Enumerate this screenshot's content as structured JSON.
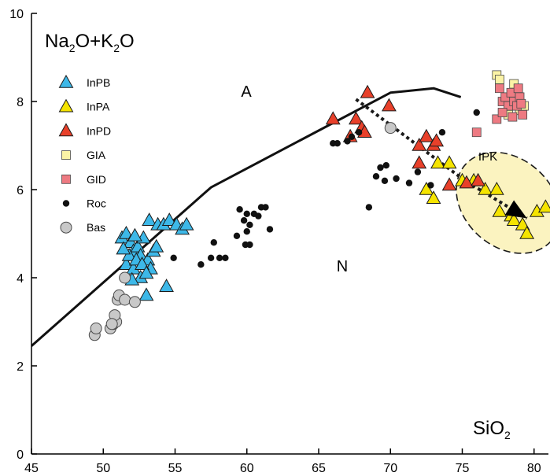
{
  "chart_data": {
    "type": "scatter",
    "title": "",
    "xlabel": {
      "main": "SiO",
      "sub": "2"
    },
    "ylabel": {
      "parts": [
        {
          "t": "Na",
          "sub": false
        },
        {
          "t": "2",
          "sub": true
        },
        {
          "t": "O+K",
          "sub": false
        },
        {
          "t": "2",
          "sub": true
        },
        {
          "t": "O",
          "sub": false
        }
      ]
    },
    "xlim": [
      45,
      81
    ],
    "ylim": [
      0,
      10
    ],
    "xticks": [
      45,
      50,
      55,
      60,
      65,
      70,
      75,
      80
    ],
    "yticks": [
      0,
      2,
      4,
      6,
      8,
      10
    ],
    "grid": false,
    "legend_position": "top-left",
    "colors": {
      "InPB": "#3db8e8",
      "InPA": "#f5e400",
      "InPD": "#e8402a",
      "GIA": "#fbf3a6",
      "GID": "#ee7a82",
      "Roc": "#111111",
      "Bas": "#c8c8c8",
      "ipk_fill": "#fbf3c0",
      "line": "#111111"
    },
    "series": [
      {
        "name": "InPB",
        "marker": "triangle",
        "points": [
          [
            51.3,
            4.9
          ],
          [
            51.6,
            5.0
          ],
          [
            51.9,
            4.8
          ],
          [
            52.1,
            4.6
          ],
          [
            52.4,
            4.7
          ],
          [
            52.6,
            4.5
          ],
          [
            52.8,
            4.9
          ],
          [
            53.1,
            4.4
          ],
          [
            51.6,
            4.3
          ],
          [
            52.1,
            4.2
          ],
          [
            52.6,
            4.0
          ],
          [
            53.3,
            4.2
          ],
          [
            53.5,
            4.6
          ],
          [
            51.8,
            4.5
          ],
          [
            52.3,
            4.4
          ],
          [
            52.7,
            4.3
          ],
          [
            53.0,
            4.1
          ],
          [
            53.2,
            5.3
          ],
          [
            53.8,
            5.2
          ],
          [
            54.2,
            5.2
          ],
          [
            54.6,
            5.3
          ],
          [
            55.1,
            5.2
          ],
          [
            55.5,
            5.1
          ],
          [
            55.8,
            5.2
          ],
          [
            53.7,
            4.7
          ],
          [
            52.0,
            3.95
          ],
          [
            53.0,
            3.6
          ],
          [
            54.4,
            3.8
          ],
          [
            51.4,
            4.65
          ],
          [
            52.2,
            4.95
          ]
        ]
      },
      {
        "name": "InPA",
        "marker": "triangle",
        "points": [
          [
            72.5,
            6.0
          ],
          [
            73.0,
            5.8
          ],
          [
            73.3,
            6.6
          ],
          [
            74.1,
            6.6
          ],
          [
            75.0,
            6.2
          ],
          [
            75.8,
            6.2
          ],
          [
            76.6,
            6.0
          ],
          [
            77.4,
            6.0
          ],
          [
            77.6,
            5.5
          ],
          [
            78.4,
            5.4
          ],
          [
            78.6,
            5.3
          ],
          [
            79.2,
            5.2
          ],
          [
            79.5,
            5.0
          ],
          [
            80.2,
            5.5
          ],
          [
            80.8,
            5.6
          ]
        ]
      },
      {
        "name": "InPD",
        "marker": "triangle",
        "points": [
          [
            66.0,
            7.6
          ],
          [
            67.2,
            7.2
          ],
          [
            67.6,
            7.6
          ],
          [
            68.0,
            7.4
          ],
          [
            68.2,
            7.3
          ],
          [
            68.4,
            8.2
          ],
          [
            69.9,
            7.9
          ],
          [
            72.0,
            7.0
          ],
          [
            72.5,
            7.2
          ],
          [
            73.0,
            7.0
          ],
          [
            73.2,
            7.1
          ],
          [
            74.1,
            6.1
          ],
          [
            75.3,
            6.15
          ],
          [
            72.0,
            6.6
          ],
          [
            76.1,
            6.2
          ]
        ]
      },
      {
        "name": "GIA",
        "marker": "square",
        "points": [
          [
            77.4,
            8.6
          ],
          [
            77.6,
            8.5
          ],
          [
            78.6,
            8.4
          ],
          [
            78.2,
            7.7
          ],
          [
            79.0,
            7.8
          ],
          [
            79.3,
            7.9
          ]
        ]
      },
      {
        "name": "GID",
        "marker": "square",
        "points": [
          [
            77.6,
            8.3
          ],
          [
            77.8,
            8.0
          ],
          [
            78.0,
            8.1
          ],
          [
            78.2,
            7.9
          ],
          [
            78.4,
            8.2
          ],
          [
            78.6,
            8.0
          ],
          [
            78.8,
            7.9
          ],
          [
            78.9,
            8.3
          ],
          [
            79.0,
            8.1
          ],
          [
            79.2,
            7.7
          ],
          [
            77.4,
            7.6
          ],
          [
            77.8,
            7.75
          ],
          [
            78.5,
            7.65
          ],
          [
            79.1,
            7.95
          ],
          [
            76.0,
            7.3
          ]
        ]
      },
      {
        "name": "Roc",
        "marker": "dot",
        "points": [
          [
            54.9,
            4.45
          ],
          [
            56.8,
            4.3
          ],
          [
            57.5,
            4.45
          ],
          [
            57.7,
            4.8
          ],
          [
            58.1,
            4.45
          ],
          [
            58.5,
            4.45
          ],
          [
            59.3,
            4.95
          ],
          [
            59.5,
            5.55
          ],
          [
            59.8,
            5.3
          ],
          [
            60.0,
            5.45
          ],
          [
            60.2,
            5.2
          ],
          [
            60.0,
            5.05
          ],
          [
            60.5,
            5.45
          ],
          [
            60.8,
            5.4
          ],
          [
            61.0,
            5.6
          ],
          [
            61.3,
            5.6
          ],
          [
            61.6,
            5.1
          ],
          [
            59.9,
            4.75
          ],
          [
            60.2,
            4.75
          ],
          [
            66.0,
            7.05
          ],
          [
            66.3,
            7.05
          ],
          [
            67.0,
            7.1
          ],
          [
            67.3,
            7.2
          ],
          [
            67.8,
            7.3
          ],
          [
            69.0,
            6.3
          ],
          [
            69.3,
            6.5
          ],
          [
            69.7,
            6.55
          ],
          [
            70.4,
            6.25
          ],
          [
            71.3,
            6.15
          ],
          [
            71.9,
            6.4
          ],
          [
            72.8,
            6.1
          ],
          [
            73.6,
            7.3
          ],
          [
            76.0,
            7.75
          ],
          [
            68.5,
            5.6
          ],
          [
            69.6,
            6.2
          ]
        ]
      },
      {
        "name": "Bas",
        "marker": "circle",
        "points": [
          [
            49.4,
            2.7
          ],
          [
            49.5,
            2.85
          ],
          [
            50.5,
            2.85
          ],
          [
            50.7,
            2.95
          ],
          [
            50.9,
            3.0
          ],
          [
            50.8,
            3.15
          ],
          [
            51.0,
            3.5
          ],
          [
            51.1,
            3.6
          ],
          [
            51.5,
            3.5
          ],
          [
            51.5,
            4.0
          ],
          [
            52.2,
            3.45
          ],
          [
            50.6,
            2.95
          ],
          [
            70.0,
            7.4
          ]
        ]
      }
    ],
    "boundary_line": [
      [
        45,
        2.45
      ],
      [
        57.5,
        6.05
      ],
      [
        70,
        8.2
      ],
      [
        73,
        8.3
      ],
      [
        74.9,
        8.1
      ]
    ],
    "trend_line": [
      [
        67.6,
        8.05
      ],
      [
        75.2,
        6.2
      ],
      [
        79.5,
        5.35
      ]
    ],
    "ipk_ellipse": {
      "cx": 78.2,
      "cy": 5.7,
      "rx_data": 4.0,
      "ry_data": 1.0,
      "angle_deg": 42
    },
    "annotations": [
      "A",
      "N",
      "IPK"
    ]
  }
}
